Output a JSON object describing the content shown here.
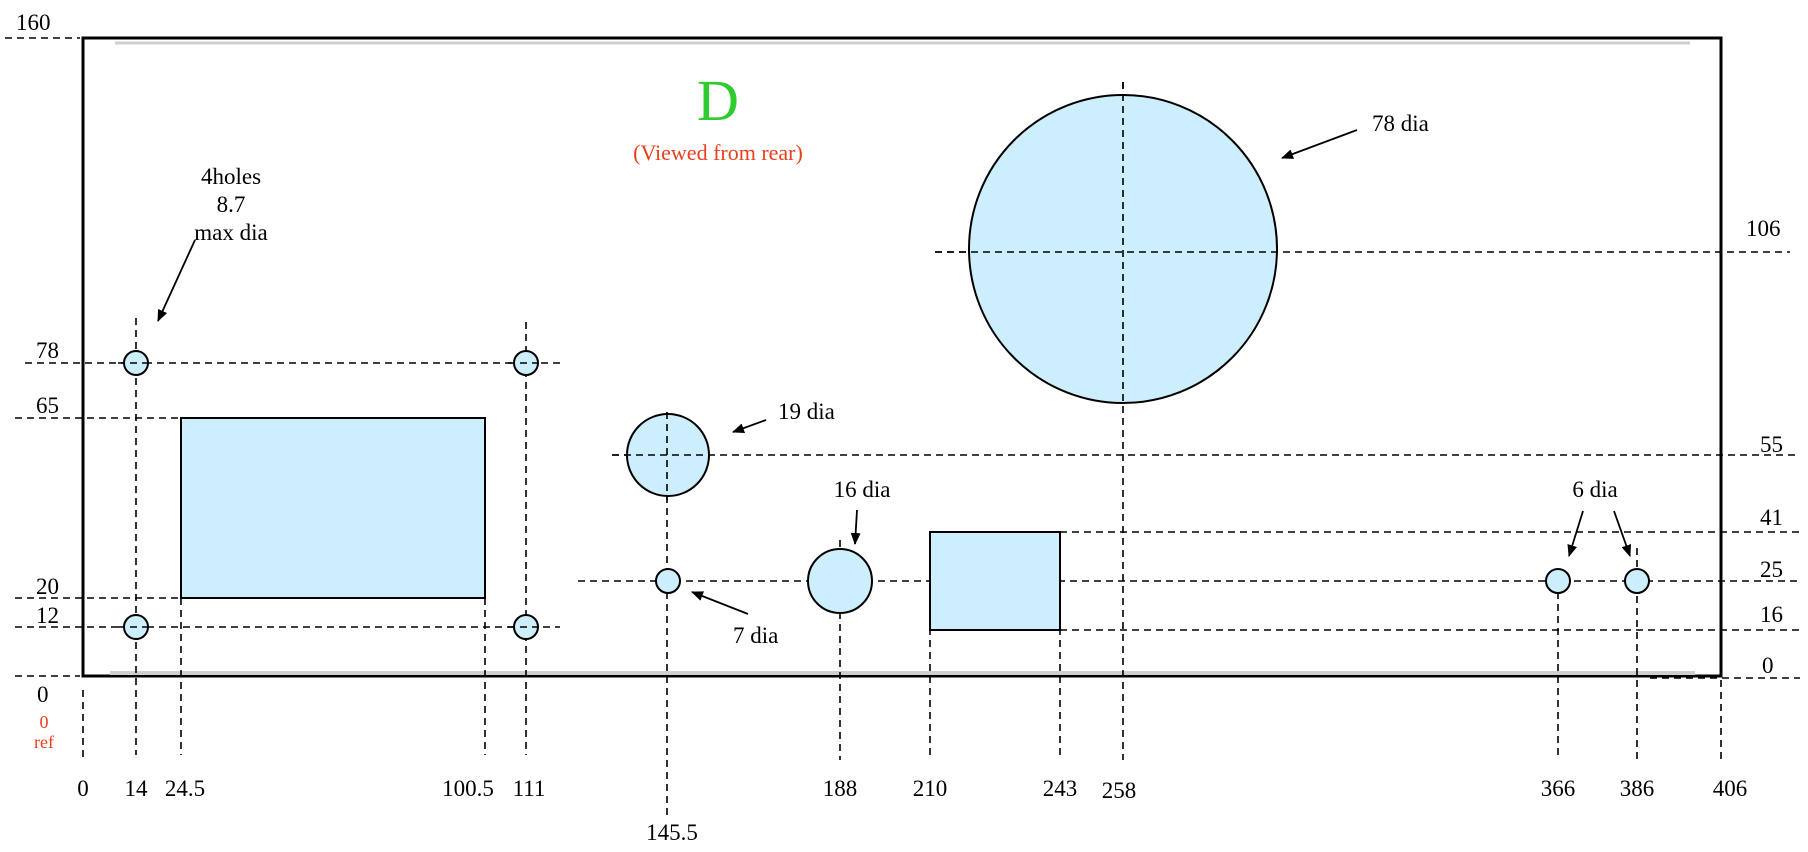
{
  "drawing": {
    "title": "D",
    "subtitle": "(Viewed from rear)",
    "ref_zero": "0",
    "ref_label": "ref"
  },
  "holes_note": {
    "line1": "4holes",
    "line2": "8.7",
    "line3": "max dia"
  },
  "callouts": {
    "dia78": "78 dia",
    "dia19": "19 dia",
    "dia16": "16 dia",
    "dia7": "7 dia",
    "dia6": "6 dia"
  },
  "x_dims": {
    "x0": "0",
    "x14": "14",
    "x24_5": "24.5",
    "x100_5": "100.5",
    "x111": "111",
    "x145_5": "145.5",
    "x188": "188",
    "x210": "210",
    "x243": "243",
    "x258": "258",
    "x366": "366",
    "x386": "386",
    "x406": "406"
  },
  "y_dims_left": {
    "y160": "160",
    "y78": "78",
    "y65": "65",
    "y20": "20",
    "y12": "12",
    "y0": "0"
  },
  "y_dims_right": {
    "y106": "106",
    "y55": "55",
    "y41": "41",
    "y25": "25",
    "y16": "16",
    "y0": "0"
  }
}
